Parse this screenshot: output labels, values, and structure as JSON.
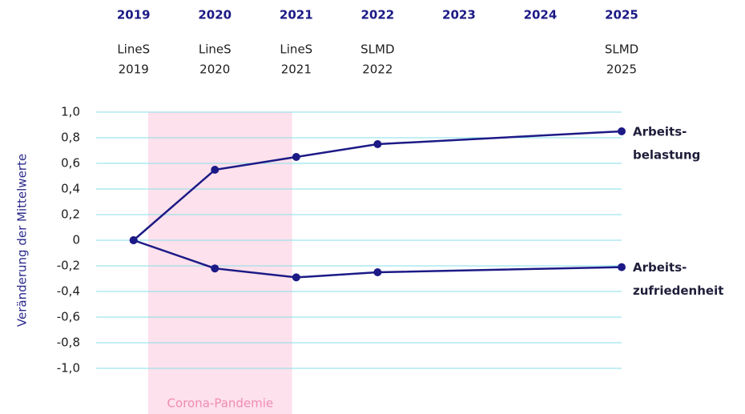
{
  "chart_data": {
    "type": "line",
    "y_label": "Veränderung der Mittelwerte",
    "x": [
      2019,
      2020,
      2021,
      2022,
      2025
    ],
    "xlim": [
      2018.54,
      2025
    ],
    "xticks": [
      2019,
      2020,
      2021,
      2022,
      2023,
      2024,
      2025
    ],
    "x_annotations": [
      {
        "x": 2019,
        "lines": [
          "LineS",
          "2019"
        ]
      },
      {
        "x": 2020,
        "lines": [
          "LineS",
          "2020"
        ]
      },
      {
        "x": 2021,
        "lines": [
          "LineS",
          "2021"
        ]
      },
      {
        "x": 2022,
        "lines": [
          "SLMD",
          "2022"
        ]
      },
      {
        "x": 2025,
        "lines": [
          "SLMD",
          "2025"
        ]
      }
    ],
    "shaded_region": {
      "x": [
        2019.18,
        2020.95
      ],
      "label": "Corona-Pandemie",
      "color": "#fde1ec",
      "label_color": "#f08cb2"
    },
    "ylim": [
      -1.0,
      1.0
    ],
    "yticks": [
      {
        "value": 1.0,
        "label": "1,0"
      },
      {
        "value": 0.8,
        "label": "0,8"
      },
      {
        "value": 0.6,
        "label": "0,6"
      },
      {
        "value": 0.4,
        "label": "0,4"
      },
      {
        "value": 0.2,
        "label": "0,2"
      },
      0,
      {
        "value": -0.2,
        "label": "-0,2"
      },
      {
        "value": -0.4,
        "label": "-0,4"
      },
      {
        "value": -0.6,
        "label": "-0,6"
      },
      {
        "value": -0.8,
        "label": "-0,8"
      },
      {
        "value": -1.0,
        "label": "-1,0"
      }
    ],
    "grid": true,
    "grid_color": "#86dfe8",
    "series": [
      {
        "label": [
          "Arbeits-",
          "belastung"
        ],
        "color": "#1c1a86",
        "values": [
          0,
          0.55,
          0.65,
          0.75,
          0.85
        ]
      },
      {
        "label": [
          "Arbeits-",
          "zufriedenheit"
        ],
        "color": "#1c1a86",
        "values": [
          0,
          -0.22,
          -0.29,
          -0.25,
          -0.21
        ]
      }
    ]
  }
}
